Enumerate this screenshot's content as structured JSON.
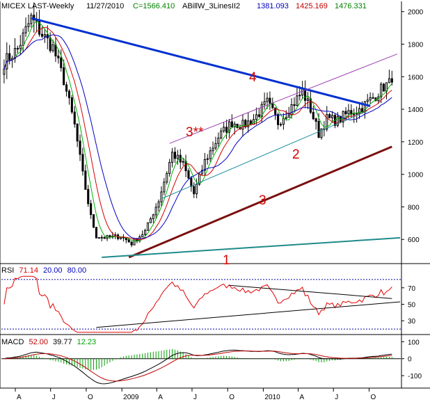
{
  "header": {
    "symbol": "MICEX LAST-Weekly",
    "date": "11/27/2010",
    "close_text": "C=1566.410",
    "indicator": "ABillW_3LinesII2",
    "val_blue": "1381.093",
    "val_red": "1425.169",
    "val_green": "1476.331"
  },
  "rsi_header": {
    "name": "RSI",
    "value": "71.14",
    "lower": "20.00",
    "upper": "80.00"
  },
  "macd_header": {
    "name": "MACD",
    "value": "52.00",
    "signal": "39.77",
    "hist": "12.23"
  },
  "annotations": [
    "1",
    "2",
    "3",
    "3**",
    "4"
  ],
  "colors": {
    "bars": "#000000",
    "ma_green": "#00b000",
    "ma_red": "#d40000",
    "ma_blue": "#0000c0",
    "trend4": "#0030d0",
    "trend3": "#7a1010",
    "trend1": "#1f8a8a",
    "channel": "#9b3fb0",
    "line2": "#1e8fa0",
    "rsi": "#e00000",
    "macd_hist": "#00a000",
    "dotted": "#0000a0"
  },
  "chart_data": [
    {
      "type": "candlestick",
      "title": "MICEX LAST-Weekly",
      "y_ticks": [
        600,
        800,
        1000,
        1200,
        1400,
        1600,
        1800,
        2000
      ],
      "ylim": [
        460,
        2050
      ],
      "x_tick_labels": [
        "A",
        "J",
        "O",
        "2009",
        "A",
        "J",
        "O",
        "2010",
        "A",
        "J",
        "O"
      ],
      "x_tick_dates": [
        "2008-04-01",
        "2008-07-01",
        "2008-10-01",
        "2009-01-01",
        "2009-04-01",
        "2009-07-01",
        "2009-10-01",
        "2010-01-01",
        "2010-04-01",
        "2010-07-01",
        "2010-10-01"
      ],
      "xlim": [
        "2008-02-25",
        "2010-12-20"
      ],
      "close_anchors": [
        {
          "date": "2008-03-03",
          "value": 1690
        },
        {
          "date": "2008-04-07",
          "value": 1770
        },
        {
          "date": "2008-05-12",
          "value": 1960
        },
        {
          "date": "2008-06-09",
          "value": 1860
        },
        {
          "date": "2008-07-07",
          "value": 1780
        },
        {
          "date": "2008-08-04",
          "value": 1580
        },
        {
          "date": "2008-09-01",
          "value": 1300
        },
        {
          "date": "2008-09-22",
          "value": 1000
        },
        {
          "date": "2008-10-13",
          "value": 740
        },
        {
          "date": "2008-10-27",
          "value": 620
        },
        {
          "date": "2008-11-24",
          "value": 610
        },
        {
          "date": "2008-12-29",
          "value": 620
        },
        {
          "date": "2009-01-26",
          "value": 575
        },
        {
          "date": "2009-03-02",
          "value": 650
        },
        {
          "date": "2009-04-06",
          "value": 840
        },
        {
          "date": "2009-05-11",
          "value": 1130
        },
        {
          "date": "2009-06-08",
          "value": 1060
        },
        {
          "date": "2009-07-06",
          "value": 880
        },
        {
          "date": "2009-08-03",
          "value": 1080
        },
        {
          "date": "2009-09-07",
          "value": 1230
        },
        {
          "date": "2009-10-12",
          "value": 1320
        },
        {
          "date": "2009-11-09",
          "value": 1300
        },
        {
          "date": "2009-12-07",
          "value": 1340
        },
        {
          "date": "2010-01-11",
          "value": 1440
        },
        {
          "date": "2010-02-08",
          "value": 1320
        },
        {
          "date": "2010-03-15",
          "value": 1420
        },
        {
          "date": "2010-04-12",
          "value": 1510
        },
        {
          "date": "2010-05-03",
          "value": 1400
        },
        {
          "date": "2010-05-24",
          "value": 1250
        },
        {
          "date": "2010-06-14",
          "value": 1340
        },
        {
          "date": "2010-07-12",
          "value": 1330
        },
        {
          "date": "2010-08-09",
          "value": 1380
        },
        {
          "date": "2010-09-06",
          "value": 1400
        },
        {
          "date": "2010-10-11",
          "value": 1470
        },
        {
          "date": "2010-11-08",
          "value": 1540
        },
        {
          "date": "2010-11-29",
          "value": 1566
        }
      ],
      "trendlines": [
        {
          "name": "4",
          "from": {
            "date": "2008-05-12",
            "value": 1960
          },
          "to": {
            "date": "2010-10-04",
            "value": 1420
          }
        },
        {
          "name": "3",
          "from": {
            "date": "2009-01-19",
            "value": 490
          },
          "to": {
            "date": "2010-11-29",
            "value": 1170
          }
        },
        {
          "name": "1",
          "from": {
            "date": "2008-11-10",
            "value": 490
          },
          "to": {
            "date": "2010-12-20",
            "value": 610
          }
        },
        {
          "name": "3**",
          "from": {
            "date": "2009-05-04",
            "value": 1190
          },
          "to": {
            "date": "2010-12-13",
            "value": 1740
          }
        },
        {
          "name": "2",
          "from": {
            "date": "2009-04-13",
            "value": 850
          },
          "to": {
            "date": "2010-09-27",
            "value": 1390
          }
        }
      ]
    },
    {
      "type": "line",
      "title": "RSI",
      "y_ticks": [
        30,
        50,
        70
      ],
      "ylim": [
        15,
        85
      ],
      "reference_levels": [
        20,
        80
      ],
      "last_value": 71.14
    },
    {
      "type": "bar",
      "title": "MACD",
      "y_ticks": [
        -100,
        0,
        100
      ],
      "ylim": [
        -165,
        130
      ],
      "last_values": {
        "macd": 52.0,
        "signal": 39.77,
        "histogram": 12.23
      }
    }
  ]
}
